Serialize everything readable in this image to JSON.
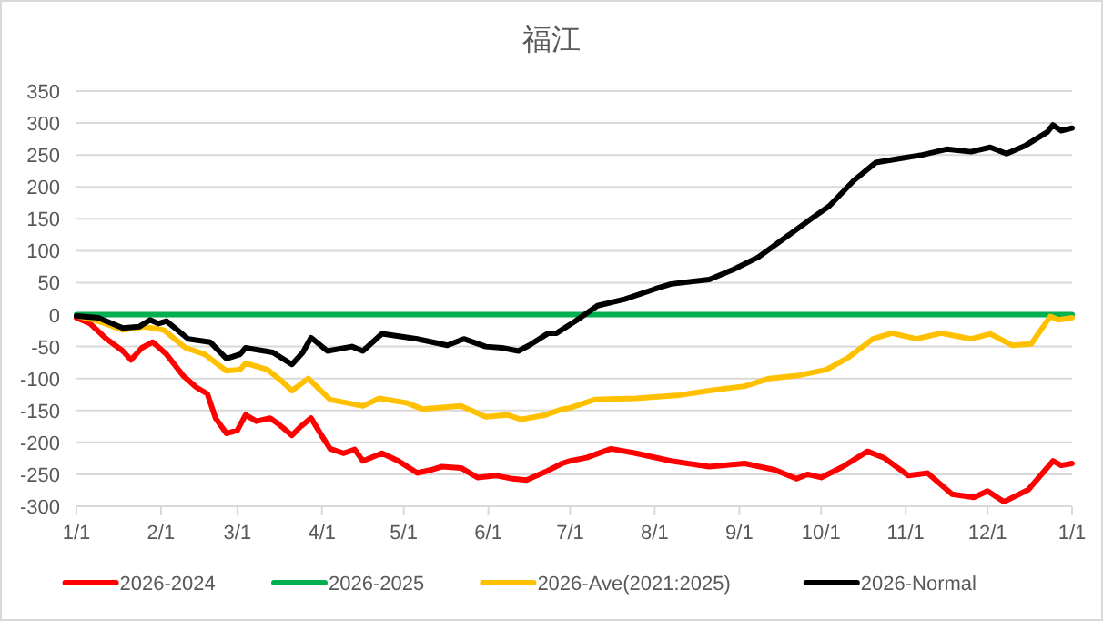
{
  "chart_data": {
    "type": "line",
    "title": "福江",
    "grid": "y",
    "legend": "bottom",
    "xlim": [
      "2026-01-01",
      "2027-01-01"
    ],
    "ylim": [
      -300,
      350
    ],
    "xticks": [
      {
        "value": "2026-01-01",
        "label": "1/1"
      },
      {
        "value": "2026-02-01",
        "label": "2/1"
      },
      {
        "value": "2026-03-01",
        "label": "3/1"
      },
      {
        "value": "2026-04-01",
        "label": "4/1"
      },
      {
        "value": "2026-05-01",
        "label": "5/1"
      },
      {
        "value": "2026-06-01",
        "label": "6/1"
      },
      {
        "value": "2026-07-01",
        "label": "7/1"
      },
      {
        "value": "2026-08-01",
        "label": "8/1"
      },
      {
        "value": "2026-09-01",
        "label": "9/1"
      },
      {
        "value": "2026-10-01",
        "label": "10/1"
      },
      {
        "value": "2026-11-01",
        "label": "11/1"
      },
      {
        "value": "2026-12-01",
        "label": "12/1"
      },
      {
        "value": "2027-01-01",
        "label": "1/1"
      }
    ],
    "yticks": [
      -300,
      -250,
      -200,
      -150,
      -100,
      -50,
      0,
      50,
      100,
      150,
      200,
      250,
      300,
      350
    ],
    "series": [
      {
        "name": "2026-2024",
        "color": "#ff0000",
        "x": [
          "2026-01-01",
          "2026-01-06",
          "2026-01-12",
          "2026-01-18",
          "2026-01-21",
          "2026-01-25",
          "2026-01-29",
          "2026-02-03",
          "2026-02-09",
          "2026-02-14",
          "2026-02-18",
          "2026-02-21",
          "2026-02-25",
          "2026-03-01",
          "2026-03-04",
          "2026-03-08",
          "2026-03-13",
          "2026-03-16",
          "2026-03-21",
          "2026-03-24",
          "2026-03-28",
          "2026-04-01",
          "2026-04-04",
          "2026-04-09",
          "2026-04-13",
          "2026-04-16",
          "2026-04-23",
          "2026-04-29",
          "2026-05-06",
          "2026-05-11",
          "2026-05-15",
          "2026-05-22",
          "2026-05-28",
          "2026-06-04",
          "2026-06-10",
          "2026-06-15",
          "2026-06-22",
          "2026-06-28",
          "2026-07-01",
          "2026-07-07",
          "2026-07-16",
          "2026-07-25",
          "2026-08-07",
          "2026-08-21",
          "2026-09-03",
          "2026-09-14",
          "2026-09-22",
          "2026-09-26",
          "2026-10-01",
          "2026-10-09",
          "2026-10-18",
          "2026-10-24",
          "2026-11-02",
          "2026-11-09",
          "2026-11-18",
          "2026-11-26",
          "2026-12-01",
          "2026-12-07",
          "2026-12-16",
          "2026-12-25",
          "2026-12-28",
          "2027-01-01"
        ],
        "values": [
          -5,
          -14,
          -38,
          -57,
          -71,
          -52,
          -43,
          -62,
          -95,
          -114,
          -124,
          -162,
          -186,
          -181,
          -157,
          -167,
          -162,
          -171,
          -189,
          -176,
          -162,
          -190,
          -210,
          -217,
          -211,
          -229,
          -217,
          -229,
          -248,
          -243,
          -238,
          -240,
          -255,
          -252,
          -257,
          -259,
          -246,
          -233,
          -229,
          -224,
          -210,
          -217,
          -229,
          -238,
          -233,
          -243,
          -257,
          -250,
          -255,
          -238,
          -214,
          -224,
          -252,
          -248,
          -281,
          -286,
          -276,
          -293,
          -274,
          -229,
          -236,
          -233
        ]
      },
      {
        "name": "2026-2025",
        "color": "#00b050",
        "x": [
          "2026-01-01",
          "2027-01-01"
        ],
        "values": [
          0,
          0
        ]
      },
      {
        "name": "2026-Ave(2021:2025)",
        "color": "#ffc000",
        "x": [
          "2026-01-01",
          "2026-01-09",
          "2026-01-18",
          "2026-01-26",
          "2026-02-02",
          "2026-02-10",
          "2026-02-17",
          "2026-02-25",
          "2026-03-02",
          "2026-03-04",
          "2026-03-12",
          "2026-03-17",
          "2026-03-21",
          "2026-03-27",
          "2026-04-04",
          "2026-04-10",
          "2026-04-16",
          "2026-04-22",
          "2026-05-02",
          "2026-05-08",
          "2026-05-22",
          "2026-05-31",
          "2026-06-08",
          "2026-06-13",
          "2026-06-22",
          "2026-06-28",
          "2026-07-01",
          "2026-07-10",
          "2026-07-25",
          "2026-08-10",
          "2026-08-21",
          "2026-09-03",
          "2026-09-12",
          "2026-09-23",
          "2026-10-03",
          "2026-10-11",
          "2026-10-20",
          "2026-10-27",
          "2026-11-05",
          "2026-11-14",
          "2026-11-25",
          "2026-12-02",
          "2026-12-10",
          "2026-12-17",
          "2026-12-24",
          "2026-12-27",
          "2027-01-01"
        ],
        "values": [
          -2,
          -10,
          -24,
          -19,
          -24,
          -52,
          -62,
          -88,
          -86,
          -76,
          -86,
          -103,
          -119,
          -100,
          -133,
          -138,
          -143,
          -131,
          -138,
          -148,
          -143,
          -160,
          -157,
          -164,
          -157,
          -148,
          -146,
          -133,
          -131,
          -126,
          -119,
          -112,
          -100,
          -95,
          -86,
          -67,
          -38,
          -29,
          -38,
          -29,
          -38,
          -30,
          -48,
          -46,
          -3,
          -8,
          -5
        ]
      },
      {
        "name": "2026-Normal",
        "color": "#000000",
        "x": [
          "2026-01-01",
          "2026-01-09",
          "2026-01-18",
          "2026-01-24",
          "2026-01-28",
          "2026-01-31",
          "2026-02-03",
          "2026-02-11",
          "2026-02-19",
          "2026-02-25",
          "2026-03-02",
          "2026-03-04",
          "2026-03-14",
          "2026-03-21",
          "2026-03-25",
          "2026-03-28",
          "2026-04-03",
          "2026-04-12",
          "2026-04-16",
          "2026-04-23",
          "2026-05-06",
          "2026-05-17",
          "2026-05-23",
          "2026-05-31",
          "2026-06-06",
          "2026-06-12",
          "2026-06-16",
          "2026-06-23",
          "2026-06-26",
          "2026-07-03",
          "2026-07-11",
          "2026-07-21",
          "2026-08-01",
          "2026-08-07",
          "2026-08-21",
          "2026-08-30",
          "2026-09-08",
          "2026-09-19",
          "2026-09-28",
          "2026-10-04",
          "2026-10-13",
          "2026-10-21",
          "2026-10-28",
          "2026-11-07",
          "2026-11-16",
          "2026-11-25",
          "2026-12-02",
          "2026-12-08",
          "2026-12-15",
          "2026-12-23",
          "2026-12-25",
          "2026-12-28",
          "2027-01-01"
        ],
        "values": [
          -2,
          -5,
          -21,
          -19,
          -8,
          -14,
          -10,
          -38,
          -43,
          -69,
          -62,
          -52,
          -59,
          -78,
          -59,
          -36,
          -57,
          -50,
          -57,
          -30,
          -38,
          -48,
          -38,
          -50,
          -52,
          -57,
          -48,
          -29,
          -29,
          -10,
          14,
          24,
          40,
          48,
          55,
          71,
          90,
          124,
          152,
          170,
          210,
          238,
          243,
          250,
          259,
          255,
          262,
          252,
          265,
          286,
          297,
          288,
          292
        ]
      }
    ]
  }
}
